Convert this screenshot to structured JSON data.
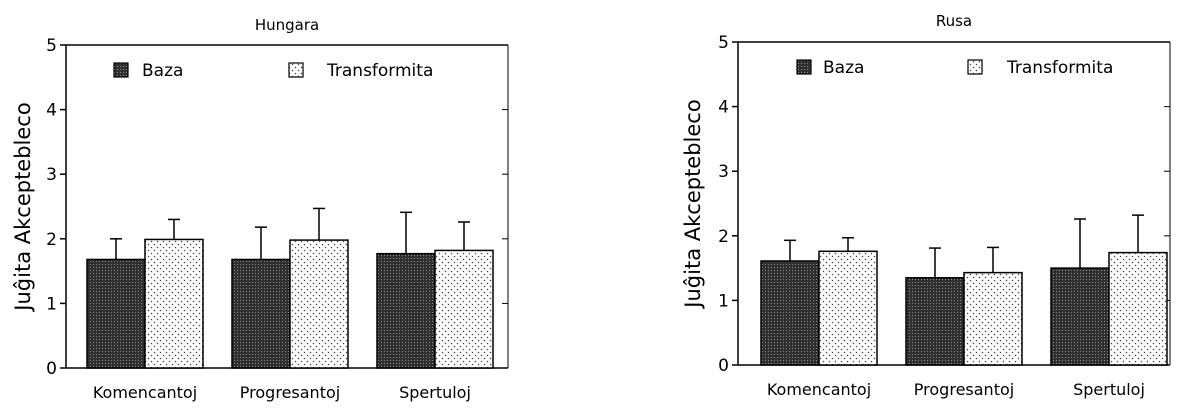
{
  "chart_data": [
    {
      "type": "bar",
      "title": "Hungara",
      "xlabel": "",
      "ylabel": "Juĝita Akceptebleco",
      "ylim": [
        0,
        5
      ],
      "yticks": [
        0,
        1,
        2,
        3,
        4,
        5
      ],
      "categories": [
        "Komencantoj",
        "Progresantoj",
        "Spertuloj"
      ],
      "series": [
        {
          "name": "Baza",
          "values": [
            1.68,
            1.68,
            1.77
          ],
          "error": [
            0.32,
            0.5,
            0.64
          ],
          "pattern": "dark-dots"
        },
        {
          "name": "Transformita",
          "values": [
            1.99,
            1.98,
            1.82
          ],
          "error": [
            0.31,
            0.49,
            0.44
          ],
          "pattern": "light-dots"
        }
      ],
      "legend_position": "top",
      "grid": false
    },
    {
      "type": "bar",
      "title": "Rusa",
      "xlabel": "",
      "ylabel": "Juĝita Akceptebleco",
      "ylim": [
        0,
        5
      ],
      "yticks": [
        0,
        1,
        2,
        3,
        4,
        5
      ],
      "categories": [
        "Komencantoj",
        "Progresantoj",
        "Spertuloj"
      ],
      "series": [
        {
          "name": "Baza",
          "values": [
            1.61,
            1.35,
            1.5
          ],
          "error": [
            0.32,
            0.46,
            0.76
          ],
          "pattern": "dark-dots"
        },
        {
          "name": "Transformita",
          "values": [
            1.76,
            1.43,
            1.74
          ],
          "error": [
            0.21,
            0.39,
            0.58
          ],
          "pattern": "light-dots"
        }
      ],
      "legend_position": "top",
      "grid": false
    }
  ]
}
